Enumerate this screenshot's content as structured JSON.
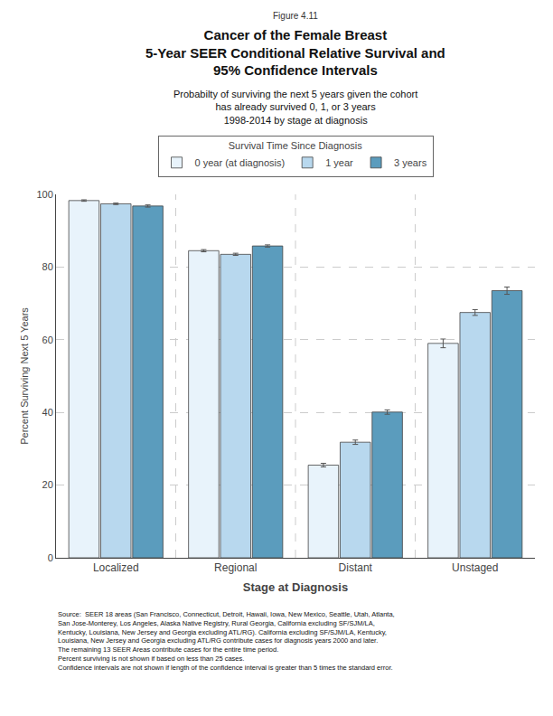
{
  "chart_data": {
    "type": "bar",
    "figure_label": "Figure 4.11",
    "title": "Cancer of the Female Breast\n5-Year SEER Conditional Relative Survival and\n95% Confidence Intervals",
    "subtitle": "Probabilty of surviving the next 5 years given the cohort\nhas already survived 0, 1, or 3 years\n1998-2014 by stage at diagnosis",
    "legend_title": "Survival Time Since Diagnosis",
    "xlabel": "Stage at Diagnosis",
    "ylabel": "Percent Surviving Next 5 Years",
    "categories": [
      "Localized",
      "Regional",
      "Distant",
      "Unstaged"
    ],
    "series": [
      {
        "name": "0 year (at diagnosis)",
        "color": "#e8f3fb",
        "values": [
          98.3,
          84.5,
          25.5,
          59.0
        ],
        "errors": [
          0.2,
          0.3,
          0.5,
          1.2
        ]
      },
      {
        "name": "1 year",
        "color": "#b8d8ee",
        "values": [
          97.4,
          83.5,
          31.8,
          67.5
        ],
        "errors": [
          0.2,
          0.3,
          0.6,
          0.8
        ]
      },
      {
        "name": "3 years",
        "color": "#5b9cbd",
        "values": [
          96.8,
          85.8,
          40.1,
          73.5
        ],
        "errors": [
          0.3,
          0.3,
          0.6,
          1.0
        ]
      }
    ],
    "ylim": [
      0,
      100
    ],
    "yticks": [
      0,
      20,
      40,
      60,
      80,
      100
    ],
    "grid": true,
    "legend": "top",
    "footnote": "Source:  SEER 18 areas (San Francisco, Connecticut, Detroit, Hawaii, Iowa, New Mexico, Seattle, Utah, Atlanta,\nSan Jose-Monterey, Los Angeles, Alaska Native Registry, Rural Georgia, California excluding SF/SJM/LA,\nKentucky, Louisiana, New Jersey and Georgia excluding ATL/RG). California excluding SF/SJM/LA, Kentucky,\nLouisiana, New Jersey and Georgia excluding ATL/RG contribute cases for diagnosis years 2000 and later.\nThe remaining 13 SEER Areas contribute cases for the entire time period.\nPercent surviving is not shown if based on less than 25 cases.\nConfidence intervals are not shown if length of the confidence interval is greater than 5 times the standard error."
  }
}
